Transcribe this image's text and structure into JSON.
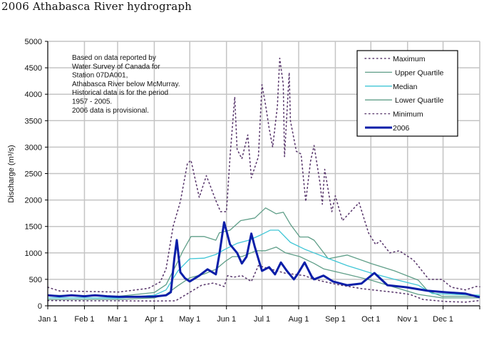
{
  "chart_data": {
    "type": "line",
    "title": "2006 Athabasca River hydrograph",
    "xlabel": "",
    "ylabel": "Discharge (m³/s)",
    "ylim": [
      0,
      5000
    ],
    "xlim_days": [
      0,
      365
    ],
    "grid": true,
    "legend_placement": "top-right",
    "yticks": [
      "0",
      "500",
      "1000",
      "1500",
      "2000",
      "2500",
      "3000",
      "3500",
      "4000",
      "4500",
      "5000"
    ],
    "xticks": [
      {
        "label": "Jan 1",
        "day": 0
      },
      {
        "label": "Feb 1",
        "day": 31
      },
      {
        "label": "Mar 1",
        "day": 59
      },
      {
        "label": "Apr 1",
        "day": 90
      },
      {
        "label": "May 1",
        "day": 120
      },
      {
        "label": "Jun 1",
        "day": 151
      },
      {
        "label": "Jul 1",
        "day": 181
      },
      {
        "label": "Aug 1",
        "day": 212
      },
      {
        "label": "Sep 1",
        "day": 243
      },
      {
        "label": "Oct 1",
        "day": 273
      },
      {
        "label": "Nov 1",
        "day": 304
      },
      {
        "label": "Dec 1",
        "day": 334
      }
    ],
    "annotation": [
      "Based on data reported by",
      "Water Survey of Canada for",
      "Station 07DA001,",
      "Athabasca River below McMurray.",
      "Historical data is for the period",
      "1957 - 2005.",
      "2006 data is provisional."
    ],
    "series": [
      {
        "name": "Maximum",
        "color": "#5b3a6e",
        "style": "dotted",
        "points": [
          [
            0,
            350
          ],
          [
            10,
            280
          ],
          [
            60,
            260
          ],
          [
            85,
            330
          ],
          [
            95,
            450
          ],
          [
            100,
            700
          ],
          [
            106,
            1510
          ],
          [
            112,
            1970
          ],
          [
            118,
            2690
          ],
          [
            121,
            2750
          ],
          [
            128,
            2050
          ],
          [
            134,
            2460
          ],
          [
            142,
            1990
          ],
          [
            146,
            1780
          ],
          [
            151,
            1780
          ],
          [
            154,
            2820
          ],
          [
            158,
            3950
          ],
          [
            160,
            2960
          ],
          [
            164,
            2780
          ],
          [
            169,
            3230
          ],
          [
            172,
            2420
          ],
          [
            178,
            2820
          ],
          [
            181,
            4180
          ],
          [
            184,
            3800
          ],
          [
            187,
            3360
          ],
          [
            190,
            3000
          ],
          [
            194,
            3770
          ],
          [
            196,
            4680
          ],
          [
            199,
            4180
          ],
          [
            200,
            2820
          ],
          [
            204,
            4410
          ],
          [
            205,
            3500
          ],
          [
            210,
            2920
          ],
          [
            214,
            2870
          ],
          [
            218,
            1970
          ],
          [
            222,
            2730
          ],
          [
            225,
            3030
          ],
          [
            230,
            2320
          ],
          [
            232,
            1920
          ],
          [
            234,
            2580
          ],
          [
            240,
            1780
          ],
          [
            243,
            2080
          ],
          [
            249,
            1610
          ],
          [
            263,
            1950
          ],
          [
            271,
            1380
          ],
          [
            277,
            1160
          ],
          [
            281,
            1230
          ],
          [
            289,
            1000
          ],
          [
            297,
            1040
          ],
          [
            309,
            865
          ],
          [
            322,
            500
          ],
          [
            333,
            500
          ],
          [
            341,
            350
          ],
          [
            353,
            300
          ],
          [
            362,
            365
          ],
          [
            365,
            360
          ]
        ]
      },
      {
        "name": "Upper Quartile",
        "color": "#5f9e88",
        "style": "solid",
        "points": [
          [
            0,
            200
          ],
          [
            30,
            190
          ],
          [
            60,
            180
          ],
          [
            90,
            250
          ],
          [
            100,
            400
          ],
          [
            110,
            840
          ],
          [
            114,
            1030
          ],
          [
            121,
            1310
          ],
          [
            132,
            1310
          ],
          [
            142,
            1240
          ],
          [
            145,
            1380
          ],
          [
            154,
            1430
          ],
          [
            163,
            1610
          ],
          [
            175,
            1660
          ],
          [
            184,
            1850
          ],
          [
            193,
            1740
          ],
          [
            199,
            1770
          ],
          [
            205,
            1540
          ],
          [
            213,
            1300
          ],
          [
            220,
            1300
          ],
          [
            225,
            1240
          ],
          [
            237,
            890
          ],
          [
            253,
            960
          ],
          [
            273,
            800
          ],
          [
            293,
            660
          ],
          [
            313,
            485
          ],
          [
            321,
            285
          ],
          [
            333,
            180
          ],
          [
            365,
            180
          ]
        ]
      },
      {
        "name": "Median",
        "color": "#3fc6d6",
        "style": "solid",
        "points": [
          [
            0,
            150
          ],
          [
            30,
            150
          ],
          [
            60,
            145
          ],
          [
            90,
            200
          ],
          [
            100,
            300
          ],
          [
            110,
            660
          ],
          [
            120,
            890
          ],
          [
            132,
            900
          ],
          [
            142,
            970
          ],
          [
            150,
            1070
          ],
          [
            160,
            1180
          ],
          [
            170,
            1240
          ],
          [
            180,
            1340
          ],
          [
            188,
            1430
          ],
          [
            195,
            1430
          ],
          [
            205,
            1200
          ],
          [
            217,
            1070
          ],
          [
            225,
            1000
          ],
          [
            233,
            930
          ],
          [
            253,
            760
          ],
          [
            273,
            620
          ],
          [
            293,
            500
          ],
          [
            313,
            390
          ],
          [
            325,
            230
          ],
          [
            343,
            215
          ],
          [
            365,
            200
          ]
        ]
      },
      {
        "name": "Lower Quartile",
        "color": "#5f9e88",
        "style": "solid",
        "points": [
          [
            0,
            120
          ],
          [
            30,
            120
          ],
          [
            60,
            120
          ],
          [
            90,
            150
          ],
          [
            100,
            215
          ],
          [
            110,
            380
          ],
          [
            120,
            530
          ],
          [
            132,
            600
          ],
          [
            142,
            690
          ],
          [
            150,
            840
          ],
          [
            156,
            930
          ],
          [
            164,
            930
          ],
          [
            176,
            1040
          ],
          [
            184,
            1040
          ],
          [
            193,
            1110
          ],
          [
            201,
            1000
          ],
          [
            213,
            930
          ],
          [
            225,
            800
          ],
          [
            233,
            700
          ],
          [
            253,
            595
          ],
          [
            273,
            485
          ],
          [
            293,
            350
          ],
          [
            313,
            215
          ],
          [
            333,
            150
          ],
          [
            365,
            150
          ]
        ]
      },
      {
        "name": "Minimum",
        "color": "#5b3a6e",
        "style": "dotted",
        "points": [
          [
            0,
            100
          ],
          [
            30,
            95
          ],
          [
            60,
            95
          ],
          [
            90,
            90
          ],
          [
            108,
            95
          ],
          [
            120,
            255
          ],
          [
            130,
            390
          ],
          [
            140,
            430
          ],
          [
            149,
            365
          ],
          [
            152,
            570
          ],
          [
            157,
            540
          ],
          [
            164,
            570
          ],
          [
            172,
            460
          ],
          [
            178,
            760
          ],
          [
            200,
            620
          ],
          [
            217,
            570
          ],
          [
            225,
            500
          ],
          [
            245,
            400
          ],
          [
            265,
            325
          ],
          [
            281,
            285
          ],
          [
            293,
            255
          ],
          [
            306,
            215
          ],
          [
            317,
            120
          ],
          [
            337,
            80
          ],
          [
            353,
            70
          ],
          [
            365,
            100
          ]
        ]
      },
      {
        "name": "2006",
        "color": "#0a1ea8",
        "style": "bold",
        "points": [
          [
            0,
            200
          ],
          [
            10,
            180
          ],
          [
            20,
            200
          ],
          [
            31,
            180
          ],
          [
            40,
            200
          ],
          [
            50,
            180
          ],
          [
            60,
            170
          ],
          [
            75,
            170
          ],
          [
            90,
            175
          ],
          [
            100,
            200
          ],
          [
            104,
            257
          ],
          [
            107,
            900
          ],
          [
            109,
            1243
          ],
          [
            112,
            635
          ],
          [
            116,
            520
          ],
          [
            120,
            460
          ],
          [
            128,
            570
          ],
          [
            135,
            690
          ],
          [
            142,
            595
          ],
          [
            145,
            970
          ],
          [
            149,
            1580
          ],
          [
            154,
            1160
          ],
          [
            160,
            1000
          ],
          [
            164,
            800
          ],
          [
            168,
            930
          ],
          [
            172,
            1365
          ],
          [
            175,
            1110
          ],
          [
            181,
            660
          ],
          [
            187,
            730
          ],
          [
            192,
            595
          ],
          [
            197,
            820
          ],
          [
            202,
            660
          ],
          [
            208,
            500
          ],
          [
            211,
            595
          ],
          [
            217,
            820
          ],
          [
            223,
            555
          ],
          [
            225,
            500
          ],
          [
            233,
            570
          ],
          [
            241,
            460
          ],
          [
            253,
            390
          ],
          [
            265,
            420
          ],
          [
            276,
            620
          ],
          [
            287,
            390
          ],
          [
            303,
            350
          ],
          [
            321,
            285
          ],
          [
            337,
            255
          ],
          [
            353,
            230
          ],
          [
            365,
            160
          ]
        ]
      }
    ]
  }
}
